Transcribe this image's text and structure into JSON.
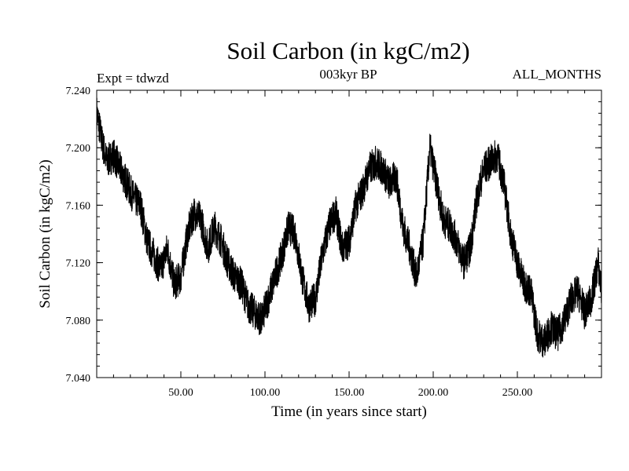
{
  "chart_data": {
    "type": "line",
    "title": "Soil Carbon (in kgC/m2)",
    "subtitle_left": "Expt = tdwzd",
    "subtitle_center": "003kyr BP",
    "subtitle_right": "ALL_MONTHS",
    "xlabel": "Time (in years since start)",
    "ylabel": "Soil Carbon (in kgC/m2)",
    "xlim": [
      0,
      300
    ],
    "ylim": [
      7.04,
      7.24
    ],
    "x_ticks": [
      50,
      100,
      150,
      200,
      250
    ],
    "x_tick_labels": [
      "50.00",
      "100.00",
      "150.00",
      "200.00",
      "250.00"
    ],
    "y_ticks": [
      7.04,
      7.08,
      7.12,
      7.16,
      7.2,
      7.24
    ],
    "y_tick_labels": [
      "7.040",
      "7.080",
      "7.120",
      "7.160",
      "7.200",
      "7.240"
    ],
    "grid": false,
    "series": [
      {
        "name": "Soil Carbon",
        "color": "#000000",
        "x": [
          0,
          3,
          6,
          10,
          14,
          18,
          22,
          26,
          30,
          34,
          38,
          42,
          46,
          50,
          54,
          58,
          62,
          66,
          70,
          74,
          78,
          82,
          86,
          90,
          94,
          98,
          102,
          106,
          110,
          114,
          118,
          122,
          126,
          130,
          134,
          138,
          142,
          146,
          150,
          154,
          158,
          162,
          166,
          170,
          174,
          178,
          182,
          186,
          190,
          194,
          198,
          202,
          206,
          210,
          214,
          218,
          222,
          226,
          230,
          234,
          238,
          242,
          246,
          250,
          254,
          258,
          262,
          266,
          270,
          274,
          278,
          282,
          286,
          290,
          294,
          298,
          300
        ],
        "y": [
          7.225,
          7.205,
          7.19,
          7.195,
          7.185,
          7.175,
          7.165,
          7.16,
          7.135,
          7.125,
          7.115,
          7.13,
          7.105,
          7.11,
          7.14,
          7.155,
          7.15,
          7.13,
          7.145,
          7.135,
          7.12,
          7.11,
          7.105,
          7.09,
          7.085,
          7.08,
          7.095,
          7.11,
          7.125,
          7.145,
          7.14,
          7.11,
          7.09,
          7.095,
          7.125,
          7.145,
          7.155,
          7.13,
          7.135,
          7.16,
          7.17,
          7.185,
          7.19,
          7.185,
          7.175,
          7.18,
          7.145,
          7.13,
          7.11,
          7.135,
          7.2,
          7.175,
          7.15,
          7.145,
          7.135,
          7.12,
          7.13,
          7.165,
          7.185,
          7.19,
          7.195,
          7.175,
          7.14,
          7.12,
          7.105,
          7.1,
          7.07,
          7.065,
          7.075,
          7.07,
          7.08,
          7.095,
          7.1,
          7.085,
          7.095,
          7.12,
          7.1
        ]
      }
    ]
  }
}
